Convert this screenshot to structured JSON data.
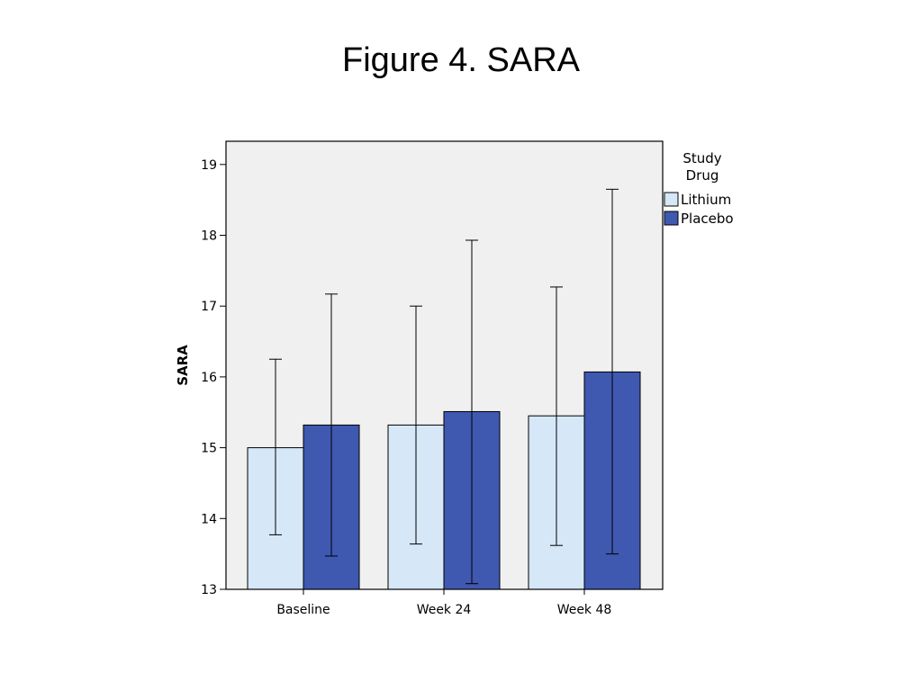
{
  "slide": {
    "title": "Figure 4. SARA"
  },
  "colors": {
    "plot_background": "#f0f0f0",
    "lithium": "#d6e7f8",
    "placebo": "#3f58b0",
    "error_bar": "#000000",
    "axis": "#000000"
  },
  "chart_data": {
    "type": "bar",
    "title": "",
    "xlabel": "",
    "ylabel": "SARA",
    "ylim": [
      13,
      19.33
    ],
    "yticks": [
      13,
      14,
      15,
      16,
      17,
      18,
      19
    ],
    "grid": false,
    "legend_title_lines": [
      "Study",
      "Drug"
    ],
    "legend_placement": "right, outside plot",
    "categories": [
      "Baseline",
      "Week 24",
      "Week 48"
    ],
    "series": [
      {
        "name": "Lithium",
        "color": "#d6e7f8",
        "values": [
          15.0,
          15.32,
          15.45
        ],
        "error_low": [
          13.77,
          13.64,
          13.62
        ],
        "error_high": [
          16.25,
          17.0,
          17.27
        ]
      },
      {
        "name": "Placebo",
        "color": "#3f58b0",
        "values": [
          15.32,
          15.51,
          16.07
        ],
        "error_low": [
          13.47,
          13.08,
          13.5
        ],
        "error_high": [
          17.17,
          17.93,
          18.65
        ]
      }
    ]
  }
}
